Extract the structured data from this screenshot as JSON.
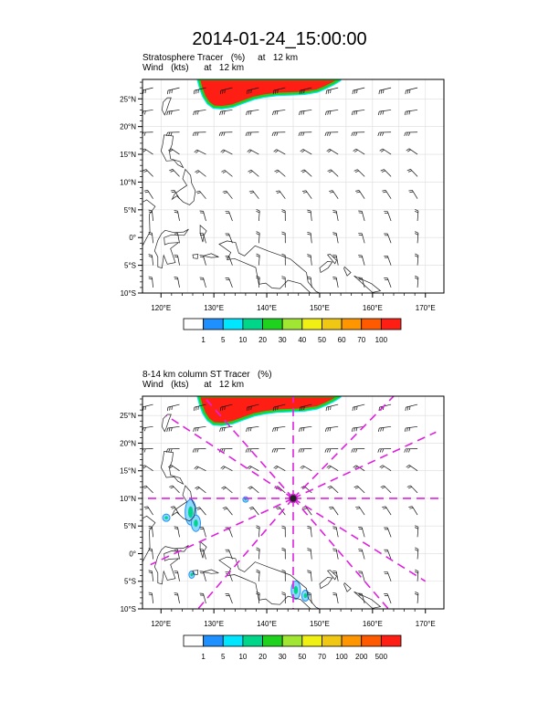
{
  "title": "2014-01-24_15:00:00",
  "panels": [
    {
      "line1": "Stratosphere Tracer   (%)     at   12 km",
      "line2": "Wind   (kts)      at   12 km",
      "colorbar": {
        "labels": [
          "1",
          "5",
          "10",
          "20",
          "30",
          "40",
          "50",
          "60",
          "70",
          "100"
        ],
        "colors": [
          "#ffffff",
          "#1e90ff",
          "#00e6ff",
          "#00d68a",
          "#1ed21e",
          "#a0e632",
          "#f0f014",
          "#f0c814",
          "#ff9600",
          "#ff5a00",
          "#ff1e14"
        ]
      },
      "cross_section": false
    },
    {
      "line1": "8-14 km column ST Tracer   (%)",
      "line2": "Wind   (kts)      at   12 km",
      "colorbar": {
        "labels": [
          "1",
          "5",
          "10",
          "20",
          "30",
          "50",
          "70",
          "100",
          "200",
          "500"
        ],
        "colors": [
          "#ffffff",
          "#1e90ff",
          "#00e6ff",
          "#00d68a",
          "#1ed21e",
          "#a0e632",
          "#f0f014",
          "#f0c814",
          "#ff9600",
          "#ff5a00",
          "#ff1e14"
        ]
      },
      "cross_section": true,
      "center_marker": "storm-center-marker"
    }
  ],
  "map": {
    "lon_labels": [
      "120°E",
      "130°E",
      "140°E",
      "150°E",
      "160°E",
      "170°E"
    ],
    "lat_labels": [
      "25°N",
      "20°N",
      "15°N",
      "10°N",
      "5°N",
      "0°",
      "5°S",
      "10°S"
    ],
    "lon_range": [
      116.5,
      173.5
    ],
    "lat_range": [
      -10,
      28.5
    ]
  },
  "colors": {
    "tracer_fill": "#ff1e14",
    "tracer_edge": "#1ed21e",
    "section_lines": "#e020e0"
  }
}
